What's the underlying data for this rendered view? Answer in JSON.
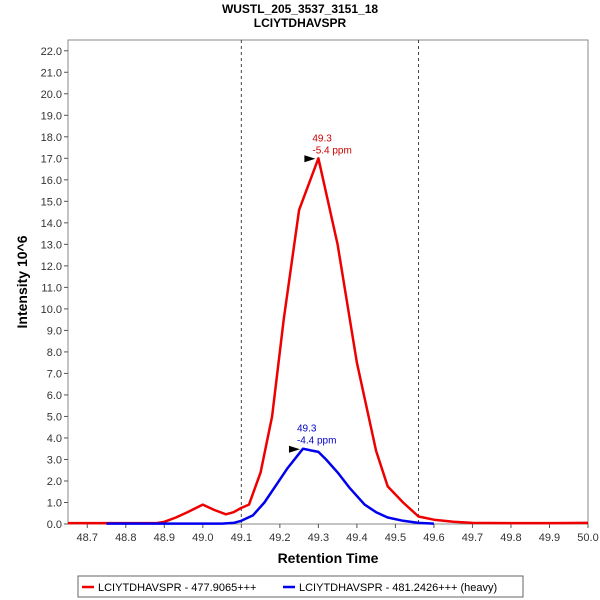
{
  "chart_data": {
    "type": "line",
    "title": "WUSTL_205_3537_3151_18",
    "subtitle": "LCIYTDHAVSPR",
    "xlabel": "Retention Time",
    "ylabel": "Intensity 10^6",
    "xlim": [
      48.65,
      50.0
    ],
    "ylim": [
      0,
      22.5
    ],
    "x_ticks": [
      "48.7",
      "48.8",
      "48.9",
      "49.0",
      "49.1",
      "49.2",
      "49.3",
      "49.4",
      "49.5",
      "49.6",
      "49.7",
      "49.8",
      "49.9",
      "50.0"
    ],
    "y_ticks": [
      "0.0",
      "1.0",
      "2.0",
      "3.0",
      "4.0",
      "5.0",
      "6.0",
      "7.0",
      "8.0",
      "9.0",
      "10.0",
      "11.0",
      "12.0",
      "13.0",
      "14.0",
      "15.0",
      "16.0",
      "17.0",
      "18.0",
      "19.0",
      "20.0",
      "21.0",
      "22.0"
    ],
    "boundaries": [
      49.1,
      49.56
    ],
    "legend_position": "bottom",
    "series": [
      {
        "name": "LCIYTDHAVSPR - 477.9065+++",
        "color": "#ee0000",
        "x": [
          48.65,
          48.7,
          48.75,
          48.8,
          48.85,
          48.88,
          48.9,
          48.93,
          48.96,
          49.0,
          49.03,
          49.06,
          49.08,
          49.1,
          49.12,
          49.15,
          49.18,
          49.21,
          49.25,
          49.3,
          49.35,
          49.4,
          49.45,
          49.48,
          49.52,
          49.56,
          49.6,
          49.65,
          49.7,
          49.8,
          49.9,
          50.0
        ],
        "y": [
          0.04,
          0.04,
          0.04,
          0.04,
          0.04,
          0.04,
          0.1,
          0.3,
          0.55,
          0.9,
          0.65,
          0.45,
          0.55,
          0.75,
          0.9,
          2.4,
          5.0,
          9.5,
          14.6,
          17.0,
          13.0,
          7.5,
          3.4,
          1.75,
          1.0,
          0.35,
          0.2,
          0.1,
          0.05,
          0.04,
          0.04,
          0.05
        ]
      },
      {
        "name": "LCIYTDHAVSPR - 481.2426+++ (heavy)",
        "color": "#0000ee",
        "x": [
          48.75,
          48.8,
          48.85,
          48.9,
          48.95,
          49.0,
          49.05,
          49.08,
          49.1,
          49.13,
          49.16,
          49.19,
          49.22,
          49.26,
          49.28,
          49.3,
          49.32,
          49.35,
          49.38,
          49.42,
          49.45,
          49.48,
          49.52,
          49.56,
          49.6
        ],
        "y": [
          0.02,
          0.02,
          0.02,
          0.02,
          0.02,
          0.02,
          0.02,
          0.05,
          0.15,
          0.4,
          1.0,
          1.8,
          2.6,
          3.5,
          3.42,
          3.35,
          3.0,
          2.4,
          1.7,
          0.9,
          0.55,
          0.3,
          0.15,
          0.05,
          0.02
        ]
      }
    ],
    "annotations": [
      {
        "x": 49.3,
        "y": 17.0,
        "line1": "49.3",
        "line2": "-5.4 ppm",
        "color": "#cc0000"
      },
      {
        "x": 49.26,
        "y": 3.5,
        "line1": "49.3",
        "line2": "-4.4 ppm",
        "color": "#0000cc"
      }
    ]
  }
}
